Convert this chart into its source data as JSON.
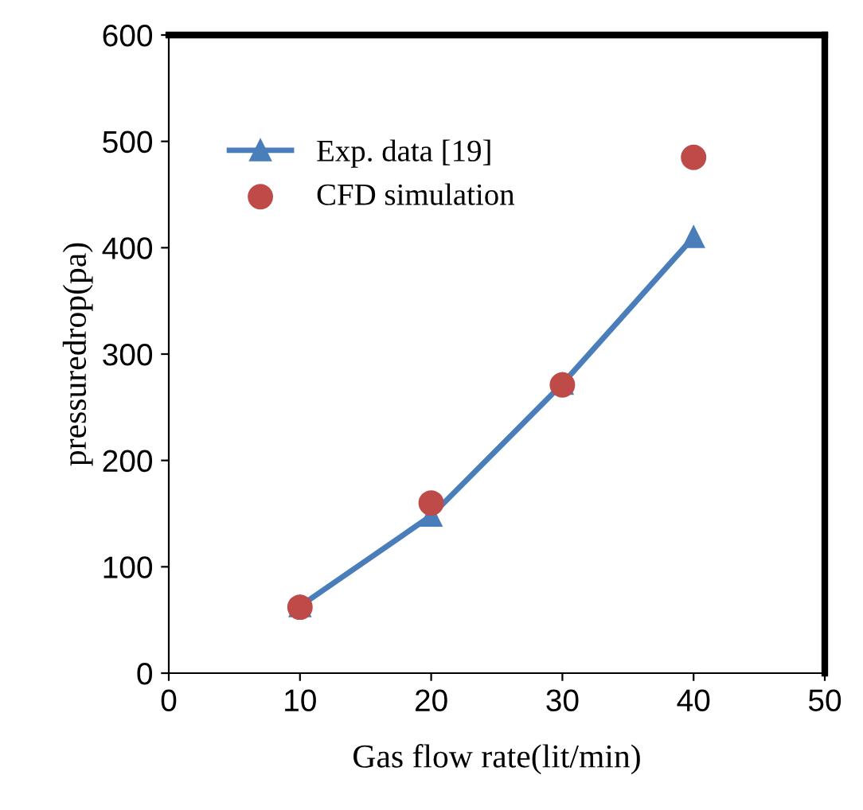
{
  "chart_data": {
    "type": "line",
    "xlabel": "Gas flow rate(lit/min)",
    "ylabel": "pressuredrop(pa)",
    "xlim": [
      0,
      50
    ],
    "xticks": [
      0,
      10,
      20,
      30,
      40,
      50
    ],
    "ylim": [
      0,
      600
    ],
    "yticks": [
      0,
      100,
      200,
      300,
      400,
      500,
      600
    ],
    "grid": false,
    "legend": "top left",
    "series": [
      {
        "name": "Exp. data [19]",
        "color": "#4a7ebb",
        "marker": "triangle",
        "line_style": "solid",
        "x": [
          10,
          20,
          30,
          40
        ],
        "values": [
          63,
          148,
          272,
          410
        ]
      },
      {
        "name": "CFD simulation",
        "type": "scatter",
        "color": "#be4b48",
        "marker": "circle",
        "x": [
          10,
          20,
          30,
          40
        ],
        "values": [
          62,
          160,
          271,
          485
        ]
      }
    ]
  }
}
